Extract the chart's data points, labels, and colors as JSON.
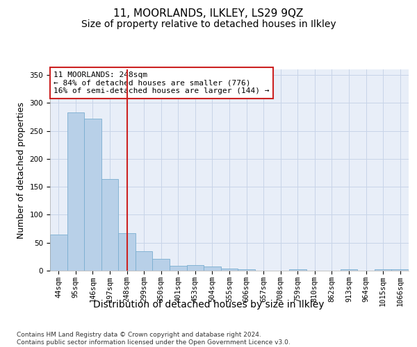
{
  "title": "11, MOORLANDS, ILKLEY, LS29 9QZ",
  "subtitle": "Size of property relative to detached houses in Ilkley",
  "xlabel": "Distribution of detached houses by size in Ilkley",
  "ylabel": "Number of detached properties",
  "footnote": "Contains HM Land Registry data © Crown copyright and database right 2024.\nContains public sector information licensed under the Open Government Licence v3.0.",
  "bar_labels": [
    "44sqm",
    "95sqm",
    "146sqm",
    "197sqm",
    "248sqm",
    "299sqm",
    "350sqm",
    "401sqm",
    "453sqm",
    "504sqm",
    "555sqm",
    "606sqm",
    "657sqm",
    "708sqm",
    "759sqm",
    "810sqm",
    "862sqm",
    "913sqm",
    "964sqm",
    "1015sqm",
    "1066sqm"
  ],
  "bar_values": [
    65,
    283,
    272,
    164,
    67,
    35,
    21,
    9,
    10,
    8,
    4,
    3,
    0,
    0,
    2,
    0,
    0,
    2,
    0,
    2,
    2
  ],
  "bar_color": "#b8d0e8",
  "bar_edge_color": "#7aaed0",
  "vline_color": "#cc2222",
  "vline_index": 4,
  "annotation_text": "11 MOORLANDS: 248sqm\n← 84% of detached houses are smaller (776)\n16% of semi-detached houses are larger (144) →",
  "annotation_box_facecolor": "#ffffff",
  "annotation_box_edgecolor": "#cc2222",
  "ylim": [
    0,
    360
  ],
  "yticks": [
    0,
    50,
    100,
    150,
    200,
    250,
    300,
    350
  ],
  "grid_color": "#c8d4e8",
  "background_color": "#e8eef8",
  "title_fontsize": 11,
  "subtitle_fontsize": 10,
  "ylabel_fontsize": 9,
  "xlabel_fontsize": 10,
  "tick_fontsize": 7.5,
  "annotation_fontsize": 8,
  "footnote_fontsize": 6.5
}
